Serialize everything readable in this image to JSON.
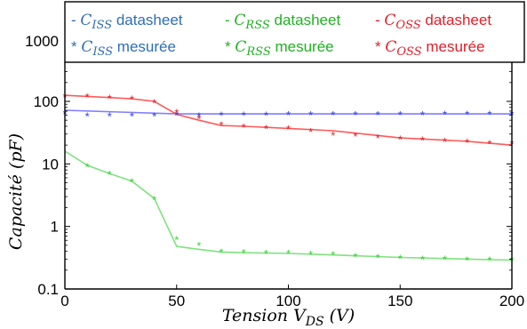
{
  "chart_data": {
    "type": "line",
    "xlabel": "Tension V_DS (V)",
    "ylabel": "Capacité (pF)",
    "ylabel_parts": {
      "main": "Capacité ",
      "unit": "(pF)"
    },
    "xlabel_parts": {
      "main": "Tension V",
      "sub": "DS",
      "unit": " (V)"
    },
    "xlim": [
      0,
      200
    ],
    "ylim": [
      0.1,
      1000
    ],
    "yscale": "log",
    "x_ticks": [
      "0",
      "50",
      "100",
      "150",
      "200"
    ],
    "y_ticks": [
      "0.1",
      "1",
      "10",
      "100",
      "1000"
    ],
    "legend": {
      "placement": "top",
      "entries": [
        {
          "prefix": "- ",
          "sym": "C",
          "sub": "ISS",
          "suffix": " datasheet",
          "color": "#2f6eb5"
        },
        {
          "prefix": "- ",
          "sym": "C",
          "sub": "RSS",
          "suffix": " datasheet",
          "color": "#22b022"
        },
        {
          "prefix": "- ",
          "sym": "C",
          "sub": "OSS",
          "suffix": " datasheet",
          "color": "#e0202a"
        },
        {
          "prefix": "* ",
          "sym": "C",
          "sub": "ISS",
          "suffix": " mesurée",
          "color": "#2f6eb5"
        },
        {
          "prefix": "* ",
          "sym": "C",
          "sub": "RSS",
          "suffix": " mesurée",
          "color": "#22b022"
        },
        {
          "prefix": "* ",
          "sym": "C",
          "sub": "OSS",
          "suffix": " mesurée",
          "color": "#e0202a"
        }
      ]
    },
    "series": [
      {
        "kind": "line",
        "color": "#7f7fff",
        "x": [
          0,
          50,
          100,
          150,
          200
        ],
        "y": [
          72,
          63,
          63,
          63,
          63
        ]
      },
      {
        "kind": "line",
        "color": "#7fe27f",
        "x": [
          0,
          10,
          20,
          30,
          40,
          50,
          60,
          70,
          80,
          100,
          120,
          150,
          180,
          200
        ],
        "y": [
          16,
          9.5,
          7,
          5.3,
          2.8,
          0.48,
          0.43,
          0.39,
          0.38,
          0.37,
          0.35,
          0.32,
          0.3,
          0.29
        ]
      },
      {
        "kind": "line",
        "color": "#ff5a5a",
        "x": [
          0,
          10,
          20,
          30,
          40,
          50,
          60,
          70,
          80,
          100,
          120,
          150,
          180,
          200
        ],
        "y": [
          125,
          120,
          115,
          110,
          100,
          62,
          50,
          41,
          40,
          37,
          34,
          26,
          23,
          20
        ]
      },
      {
        "kind": "markers",
        "color": "#2f3fe0",
        "x": [
          0,
          10,
          20,
          30,
          40,
          50,
          60,
          70,
          80,
          90,
          100,
          110,
          120,
          130,
          140,
          150,
          160,
          170,
          180,
          190,
          200
        ],
        "y": [
          63,
          58,
          58,
          58,
          58,
          60,
          58,
          60,
          60,
          60,
          61,
          61,
          61,
          61,
          61,
          61,
          61,
          62,
          62,
          62,
          62
        ]
      },
      {
        "kind": "markers",
        "color": "#3ad03a",
        "x": [
          10,
          20,
          30,
          40,
          50,
          60,
          70,
          80,
          90,
          100,
          110,
          120,
          130,
          140,
          150,
          160,
          170,
          180,
          190,
          200
        ],
        "y": [
          9,
          6.8,
          5.2,
          2.7,
          0.62,
          0.5,
          0.39,
          0.38,
          0.37,
          0.37,
          0.36,
          0.35,
          0.33,
          0.32,
          0.31,
          0.3,
          0.3,
          0.29,
          0.29,
          0.29
        ]
      },
      {
        "kind": "markers",
        "color": "#e0202a",
        "x": [
          0,
          10,
          20,
          30,
          40,
          50,
          60,
          70,
          80,
          90,
          100,
          110,
          120,
          130,
          140,
          150,
          160,
          170,
          180,
          190,
          200
        ],
        "y": [
          118,
          117,
          113,
          108,
          95,
          66,
          53,
          42,
          39,
          37,
          36,
          33,
          29,
          28,
          26,
          25,
          24,
          23,
          22,
          21,
          21
        ]
      }
    ]
  }
}
